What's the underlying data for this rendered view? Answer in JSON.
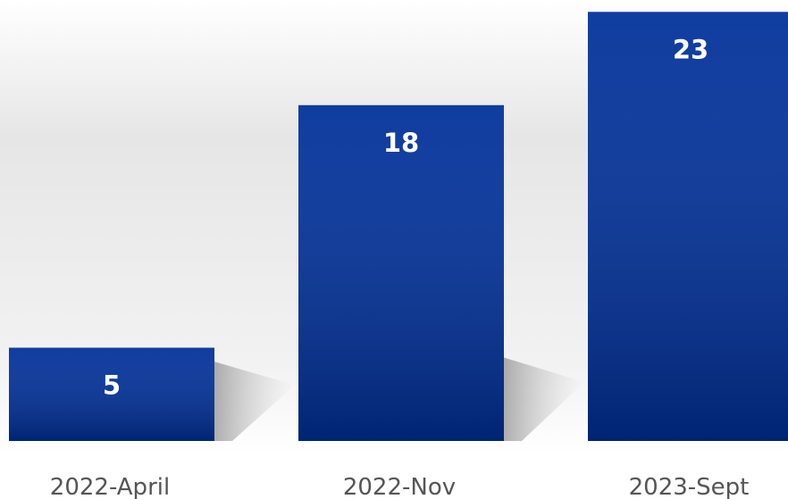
{
  "chart_data": {
    "type": "bar",
    "categories": [
      "2022-April",
      "2022-Nov",
      "2023-Sept"
    ],
    "values": [
      5,
      18,
      23
    ],
    "color": "#00309a"
  }
}
